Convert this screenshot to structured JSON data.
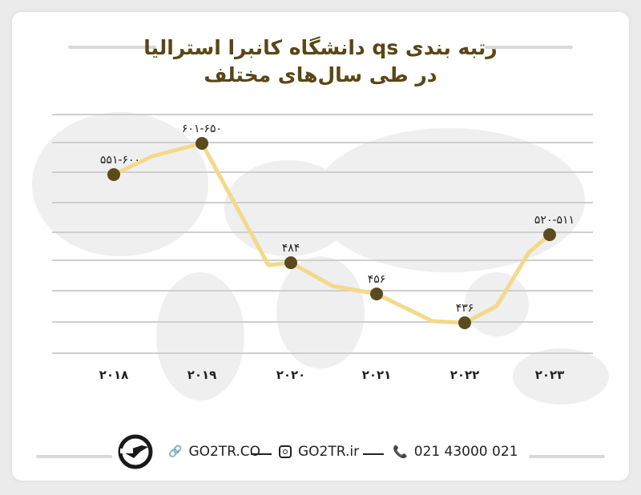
{
  "title_line1": "رتبه بندی qs دانشگاه کانبرا استرالیا",
  "title_line2": "در طی سال‌های مختلف",
  "chart_data": {
    "type": "line",
    "title": "رتبه بندی qs دانشگاه کانبرا استرالیا در طی سال‌های مختلف",
    "categories": [
      "۲۰۱۸",
      "۲۰۱۹",
      "۲۰۲۰",
      "۲۰۲۱",
      "۲۰۲۲",
      "۲۰۲۳"
    ],
    "values": [
      575.5,
      625.5,
      484,
      456,
      436,
      515.5
    ],
    "data_labels": [
      "۵۵۱-۶۰۰",
      "۶۰۱-۶۵۰",
      "۴۸۴",
      "۴۵۶",
      "۴۳۶",
      "۵۲۰-۵۱۱"
    ],
    "grid": true,
    "colors": {
      "line": "#f3d98a",
      "point": "#5b4a1e",
      "title": "#5a4616"
    }
  },
  "footer": {
    "website": "GO2TR.CO",
    "instagram": "GO2TR.ir",
    "phone": "021 43000 021"
  }
}
